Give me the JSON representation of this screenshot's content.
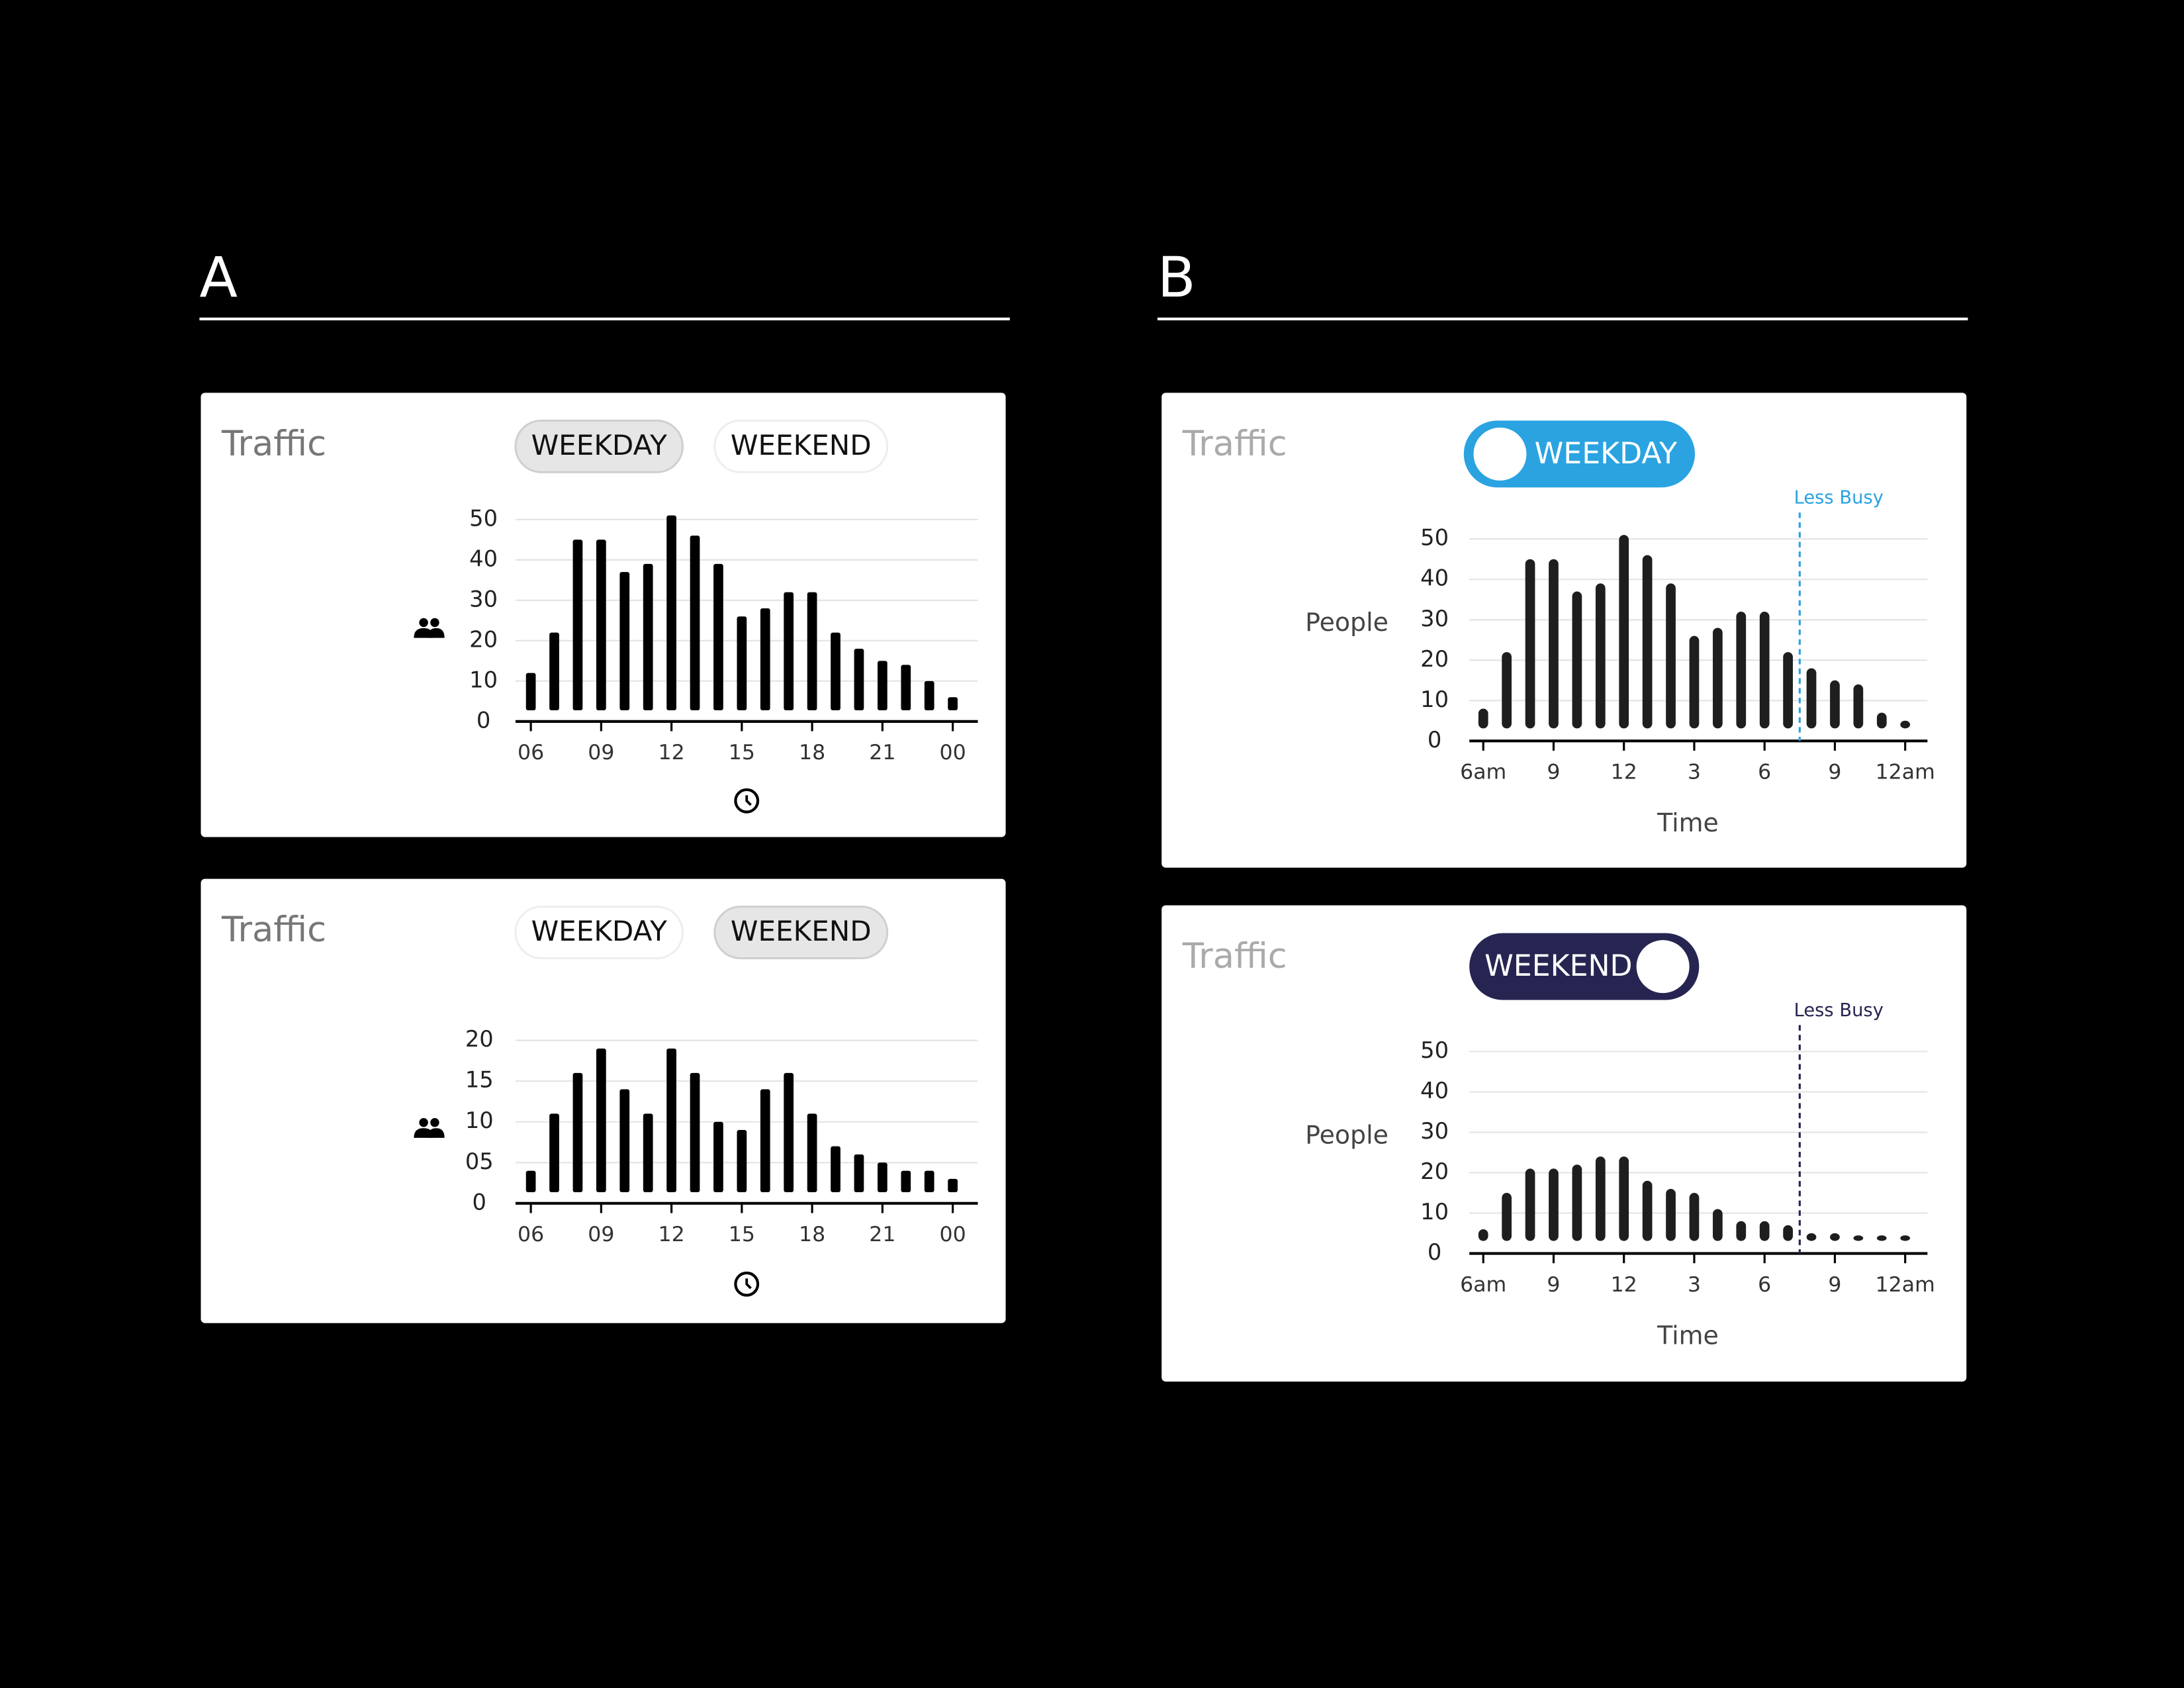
{
  "panels": [
    "A",
    "B"
  ],
  "chart_data": [
    {
      "type": "bar",
      "title": "Traffic",
      "options": [
        "WEEKDAY",
        "WEEKEND"
      ],
      "selected": 0,
      "categories": [
        "06",
        null,
        null,
        "09",
        null,
        null,
        "12",
        null,
        null,
        "15",
        null,
        null,
        "18",
        null,
        null,
        "21",
        null,
        null,
        "00"
      ],
      "values": [
        12,
        22,
        45,
        45,
        37,
        39,
        51,
        46,
        39,
        26,
        28,
        32,
        32,
        22,
        18,
        15,
        14,
        10,
        6
      ],
      "color": "#000000",
      "ylim": [
        0,
        50
      ],
      "yticks": [
        0,
        10,
        20,
        30,
        40,
        50
      ],
      "grid": true
    },
    {
      "type": "bar",
      "title": "Traffic",
      "options": [
        "WEEKDAY",
        "WEEKEND"
      ],
      "selected": 1,
      "categories": [
        "06",
        null,
        null,
        "09",
        null,
        null,
        "12",
        null,
        null,
        "15",
        null,
        null,
        "18",
        null,
        null,
        "21",
        null,
        null,
        "00"
      ],
      "values": [
        4,
        11,
        16,
        19,
        14,
        11,
        19,
        16,
        10,
        9,
        14,
        16,
        11,
        7,
        6,
        5,
        4,
        4,
        3
      ],
      "color": "#000000",
      "ylim": [
        0,
        20
      ],
      "yticks": [
        0,
        {
          "value": 5,
          "label": "05"
        },
        10,
        15,
        20
      ],
      "grid": true
    },
    {
      "type": "bar",
      "title": "Traffic",
      "switch": "WEEKDAY",
      "switch_color": "#2aa3e0",
      "knob": "left",
      "categories": [
        "6am",
        null,
        null,
        "9",
        null,
        null,
        "12",
        null,
        null,
        "3",
        null,
        null,
        "6",
        null,
        null,
        "9",
        null,
        null,
        "12am"
      ],
      "values": [
        8,
        22,
        45,
        45,
        37,
        39,
        51,
        46,
        39,
        26,
        28,
        32,
        32,
        22,
        18,
        15,
        14,
        7,
        5
      ],
      "color": "#1e1e1e",
      "ylim": [
        0,
        50
      ],
      "yticks": [
        0,
        10,
        20,
        30,
        40,
        50
      ],
      "grid": true,
      "ylabel": "People",
      "xlabel": "Time",
      "annotation": {
        "text": "Less Busy",
        "x": 13.5,
        "color": "#2aa3e0"
      }
    },
    {
      "type": "bar",
      "title": "Traffic",
      "switch": "WEEKEND",
      "switch_color": "#262552",
      "knob": "right",
      "categories": [
        "6am",
        null,
        null,
        "9",
        null,
        null,
        "12",
        null,
        null,
        "3",
        null,
        null,
        "6",
        null,
        null,
        "9",
        null,
        null,
        "12am"
      ],
      "values": [
        6,
        15,
        21,
        21,
        22,
        24,
        24,
        18,
        16,
        15,
        11,
        8,
        8,
        7,
        5,
        5,
        4,
        4,
        4
      ],
      "color": "#1e1e1e",
      "ylim": [
        0,
        50
      ],
      "yticks": [
        0,
        10,
        20,
        30,
        40,
        50
      ],
      "grid": true,
      "ylabel": "People",
      "xlabel": "Time",
      "annotation": {
        "text": "Less Busy",
        "x": 13.5,
        "color": "#262552"
      }
    }
  ]
}
